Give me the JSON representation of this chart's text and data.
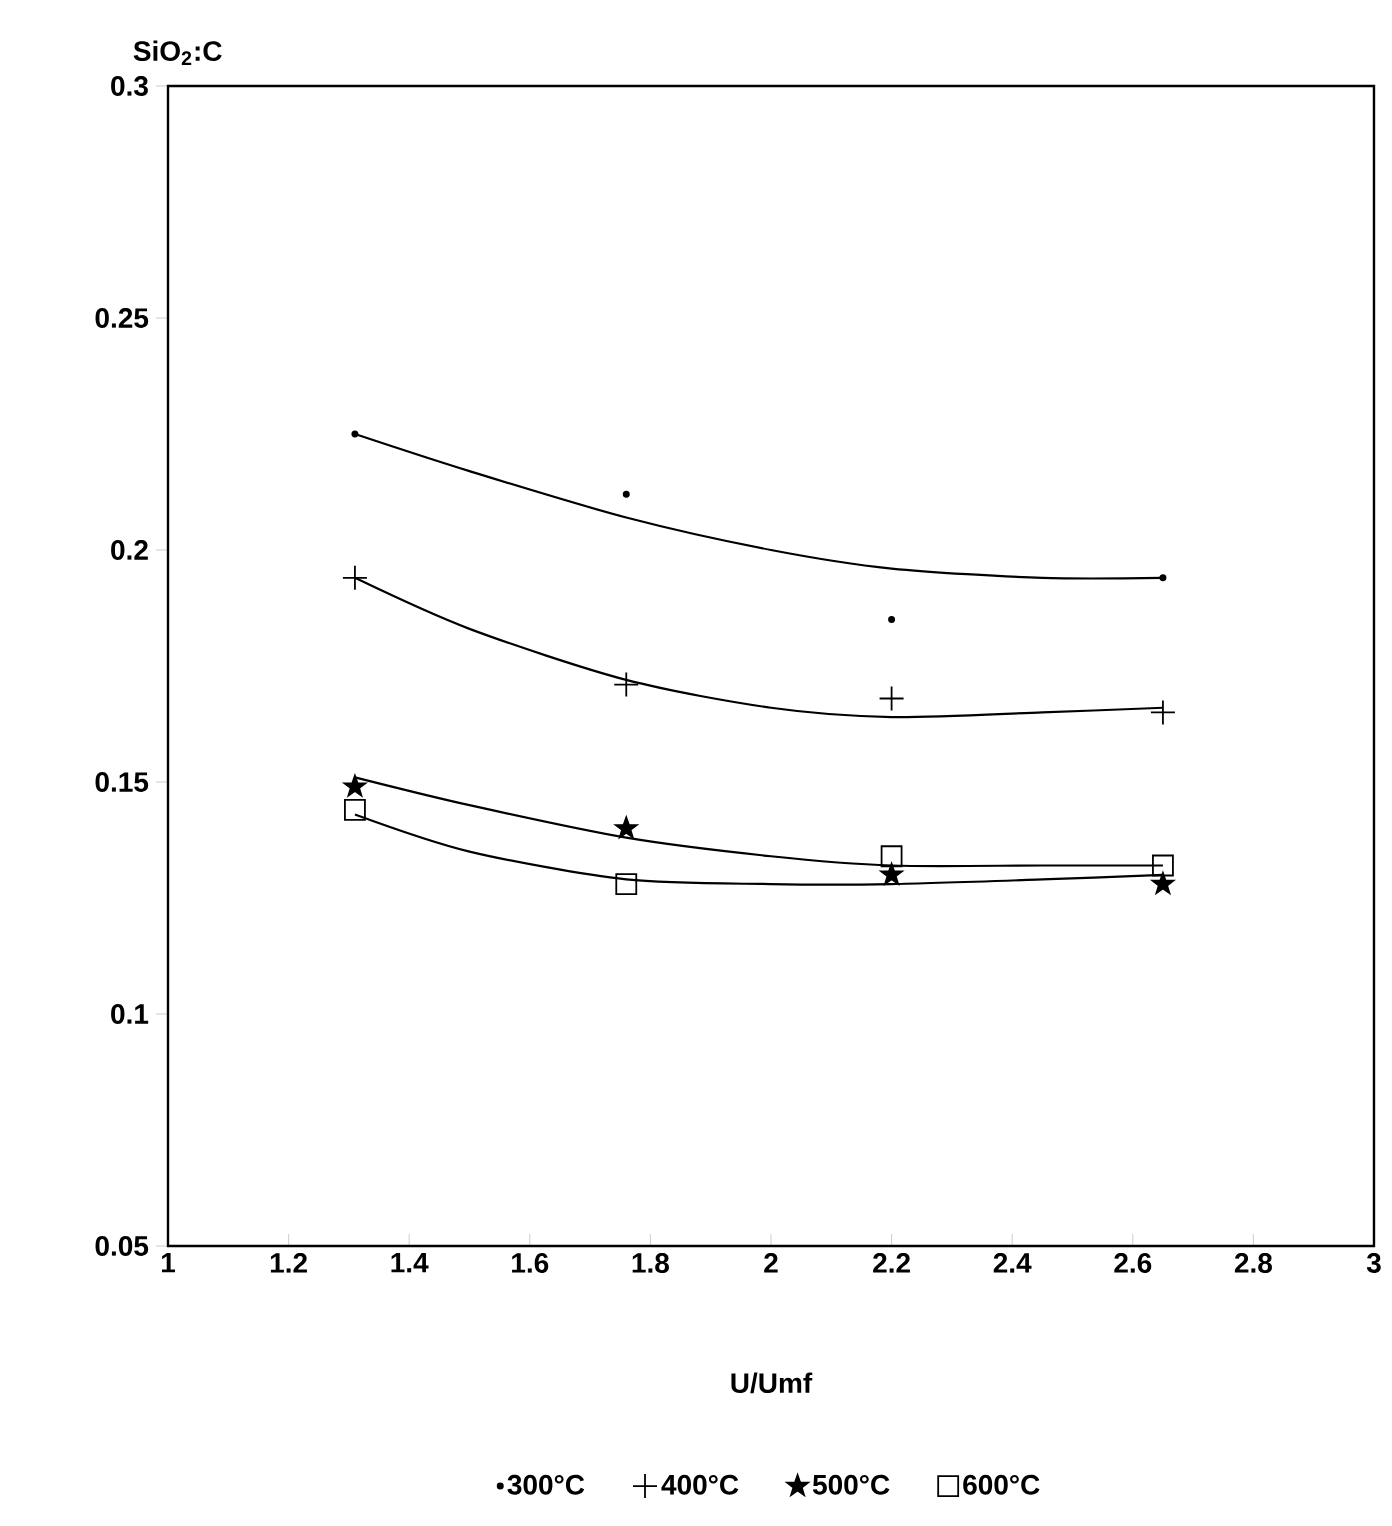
{
  "chart_data": {
    "type": "scatter",
    "xlabel": "U/Umf",
    "ylabel": "SiO$_{2}$:C",
    "xlim": [
      1,
      3
    ],
    "ylim": [
      0.05,
      0.3
    ],
    "xticks": [
      1,
      1.2,
      1.4,
      1.6,
      1.8,
      2,
      2.2,
      2.4,
      2.6,
      2.8,
      3
    ],
    "yticks": [
      0.05,
      0.1,
      0.15,
      0.2,
      0.25,
      0.3
    ],
    "legend": "bottom",
    "grid": false,
    "series": [
      {
        "name": "300°C",
        "type": "scatter",
        "marker": "circle",
        "color": "#000000",
        "x": [
          1.31,
          1.76,
          2.2,
          2.65
        ],
        "values": [
          0.225,
          0.212,
          0.185,
          0.194
        ]
      },
      {
        "name": "400°C",
        "type": "scatter",
        "marker": "cross",
        "color": "#000000",
        "x": [
          1.31,
          1.76,
          2.2,
          2.65
        ],
        "values": [
          0.194,
          0.171,
          0.168,
          0.165
        ]
      },
      {
        "name": "500°C",
        "type": "scatter",
        "marker": "star",
        "color": "#000000",
        "x": [
          1.31,
          1.76,
          2.2,
          2.65
        ],
        "values": [
          0.149,
          0.14,
          0.13,
          0.128
        ]
      },
      {
        "name": "600°C",
        "type": "scatter",
        "marker": "square",
        "color": "#000000",
        "x": [
          1.31,
          1.76,
          2.2,
          2.65
        ],
        "values": [
          0.144,
          0.128,
          0.134,
          0.132
        ]
      },
      {
        "type": "line",
        "marker": "none",
        "color": "#000000",
        "x": [
          1.31,
          1.5,
          1.76,
          2.0,
          2.2,
          2.45,
          2.65
        ],
        "values": [
          0.225,
          0.217,
          0.207,
          0.2,
          0.196,
          0.194,
          0.194
        ]
      },
      {
        "type": "line",
        "marker": "none",
        "color": "#000000",
        "x": [
          1.31,
          1.5,
          1.76,
          2.0,
          2.2,
          2.45,
          2.65
        ],
        "values": [
          0.194,
          0.183,
          0.172,
          0.166,
          0.164,
          0.165,
          0.166
        ]
      },
      {
        "type": "line",
        "marker": "none",
        "color": "#000000",
        "x": [
          1.31,
          1.5,
          1.76,
          2.0,
          2.2,
          2.45,
          2.65
        ],
        "values": [
          0.151,
          0.145,
          0.138,
          0.134,
          0.132,
          0.132,
          0.132
        ]
      },
      {
        "type": "line",
        "marker": "none",
        "color": "#000000",
        "x": [
          1.31,
          1.5,
          1.76,
          2.0,
          2.2,
          2.45,
          2.65
        ],
        "values": [
          0.143,
          0.135,
          0.129,
          0.128,
          0.128,
          0.129,
          0.13
        ]
      }
    ]
  }
}
